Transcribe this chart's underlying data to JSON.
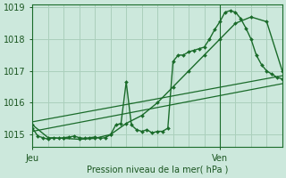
{
  "background_color": "#cce8dc",
  "grid_color": "#aacfbc",
  "line_color": "#1a6b2a",
  "text_color": "#1a5520",
  "xlabel": "Pression niveau de la mer( hPa )",
  "ylim": [
    1014.6,
    1019.1
  ],
  "yticks": [
    1015,
    1016,
    1017,
    1018,
    1019
  ],
  "xlim": [
    0,
    48
  ],
  "xtick_positions": [
    0,
    36
  ],
  "xtick_labels": [
    "Jeu",
    "Ven"
  ],
  "vline_x": 36,
  "series": [
    {
      "x": [
        0,
        48
      ],
      "y": [
        1015.4,
        1016.85
      ],
      "marker": null,
      "lw": 0.9
    },
    {
      "x": [
        0,
        48
      ],
      "y": [
        1015.1,
        1016.6
      ],
      "marker": null,
      "lw": 0.9
    },
    {
      "x": [
        0,
        1,
        2,
        3,
        4,
        5,
        6,
        7,
        8,
        9,
        10,
        11,
        12,
        13,
        14,
        15,
        16,
        17,
        18,
        19,
        20,
        21,
        22,
        23,
        24,
        25,
        26,
        27,
        28,
        29,
        30,
        31,
        32,
        33,
        34,
        35,
        36,
        37,
        38,
        39,
        40,
        41,
        42,
        43,
        44,
        45,
        46,
        47,
        48
      ],
      "y": [
        1015.2,
        1014.95,
        1014.9,
        1014.85,
        1014.9,
        1014.88,
        1014.9,
        1014.92,
        1014.95,
        1014.9,
        1014.88,
        1014.9,
        1014.92,
        1014.88,
        1014.9,
        1015.0,
        1015.3,
        1015.35,
        1016.65,
        1015.3,
        1015.15,
        1015.1,
        1015.15,
        1015.05,
        1015.1,
        1015.1,
        1015.2,
        1017.3,
        1017.5,
        1017.5,
        1017.6,
        1017.65,
        1017.7,
        1017.75,
        1018.0,
        1018.3,
        1018.55,
        1018.85,
        1018.9,
        1018.85,
        1018.65,
        1018.35,
        1018.0,
        1017.5,
        1017.2,
        1017.0,
        1016.9,
        1016.8,
        1016.75
      ],
      "marker": "D",
      "markersize": 2.0,
      "lw": 1.0
    },
    {
      "x": [
        0,
        3,
        6,
        9,
        12,
        15,
        18,
        21,
        24,
        27,
        30,
        33,
        36,
        39,
        42,
        45,
        48
      ],
      "y": [
        1015.3,
        1014.9,
        1014.88,
        1014.85,
        1014.88,
        1015.0,
        1015.35,
        1015.6,
        1016.0,
        1016.5,
        1017.0,
        1017.5,
        1018.0,
        1018.5,
        1018.7,
        1018.55,
        1017.0
      ],
      "marker": "D",
      "markersize": 2.0,
      "lw": 1.0
    }
  ]
}
